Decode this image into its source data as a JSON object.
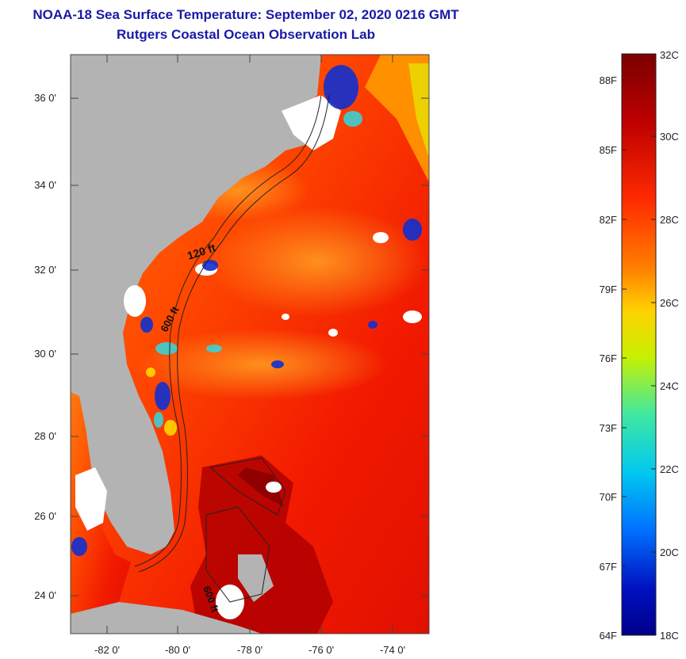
{
  "title": {
    "line1": "NOAA-18 Sea Surface Temperature:  September 02, 2020 0216 GMT",
    "line2": "Rutgers Coastal Ocean Observation Lab"
  },
  "map": {
    "lat_ticks": [
      "36 0'",
      "34 0'",
      "32 0'",
      "30 0'",
      "28 0'",
      "26 0'",
      "24 0'"
    ],
    "lon_ticks": [
      "-82 0'",
      "-80 0'",
      "-78 0'",
      "-76 0'",
      "-74 0'"
    ],
    "contour_labels": [
      "120 ft",
      "600 ft",
      "600 ft"
    ],
    "land_color": "#b3b3b3",
    "cloud_color": "#ffffff"
  },
  "colorbar": {
    "fahrenheit_labels": [
      "88F",
      "85F",
      "82F",
      "79F",
      "76F",
      "73F",
      "70F",
      "67F",
      "64F"
    ],
    "celsius_labels": [
      "32C",
      "30C",
      "28C",
      "26C",
      "24C",
      "22C",
      "20C",
      "18C"
    ],
    "colors": [
      "#7a0000",
      "#c00000",
      "#ff2000",
      "#ff7a00",
      "#ffd000",
      "#c8f000",
      "#40e8a0",
      "#00c8f0",
      "#0070ff",
      "#0010c0",
      "#00008a"
    ]
  }
}
